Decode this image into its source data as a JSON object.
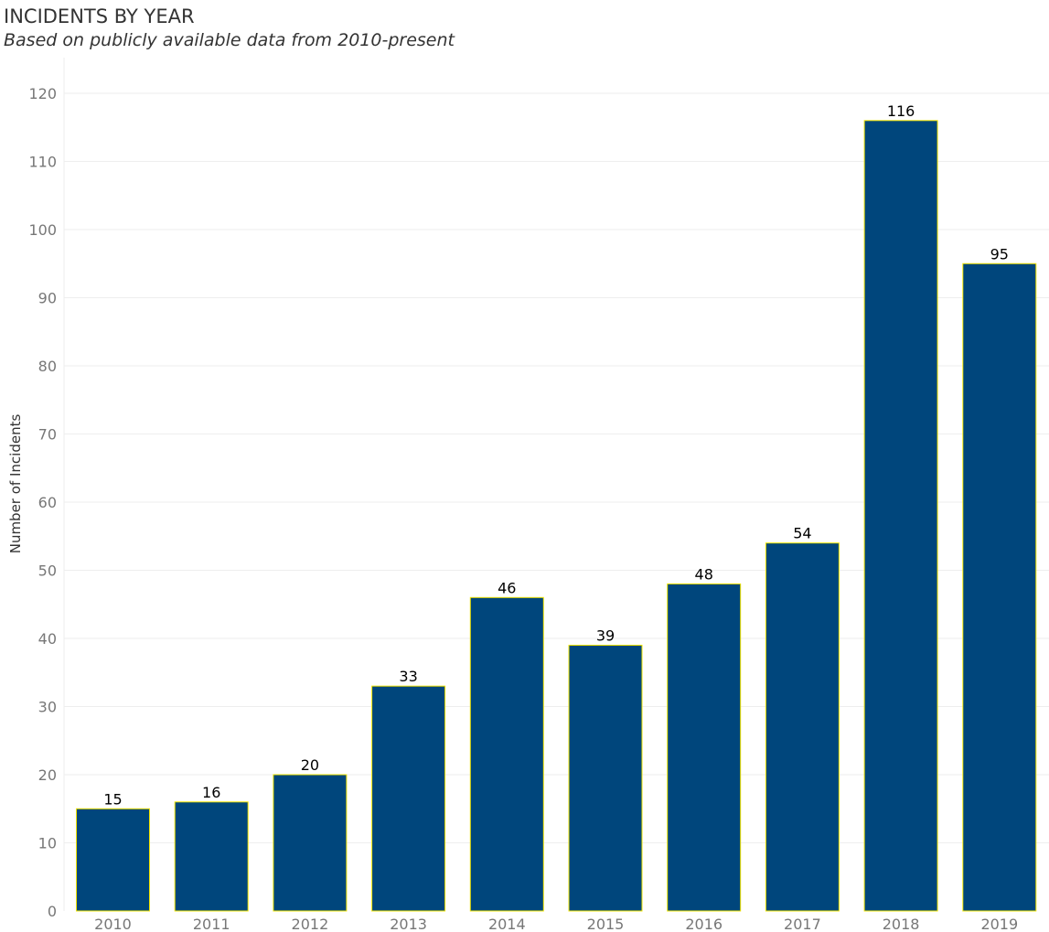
{
  "title": "INCIDENTS BY YEAR",
  "subtitle": "Based on publicly available data from 2010-present",
  "chart_data": {
    "type": "bar",
    "title": "INCIDENTS BY YEAR",
    "subtitle": "Based on publicly available data from 2010-present",
    "xlabel": "",
    "ylabel": "Number of Incidents",
    "categories": [
      "2010",
      "2011",
      "2012",
      "2013",
      "2014",
      "2015",
      "2016",
      "2017",
      "2018",
      "2019"
    ],
    "values": [
      15,
      16,
      20,
      33,
      46,
      39,
      48,
      54,
      116,
      95
    ],
    "data_labels": [
      "15",
      "16",
      "20",
      "33",
      "46",
      "39",
      "48",
      "54",
      "116",
      "95"
    ],
    "ylim": [
      0,
      120
    ],
    "yticks": [
      0,
      10,
      20,
      30,
      40,
      50,
      60,
      70,
      80,
      90,
      100,
      110,
      120
    ],
    "ytick_labels": [
      "0",
      "10",
      "20",
      "30",
      "40",
      "50",
      "60",
      "70",
      "80",
      "90",
      "100",
      "110",
      "120"
    ],
    "grid": true,
    "legend": "none",
    "colors": {
      "bar_fill": "#00467c",
      "bar_outline": "#f2e400",
      "grid": "#eeeeee",
      "tick_text": "#777777",
      "value_text": "#000000",
      "title_text": "#333333"
    }
  }
}
